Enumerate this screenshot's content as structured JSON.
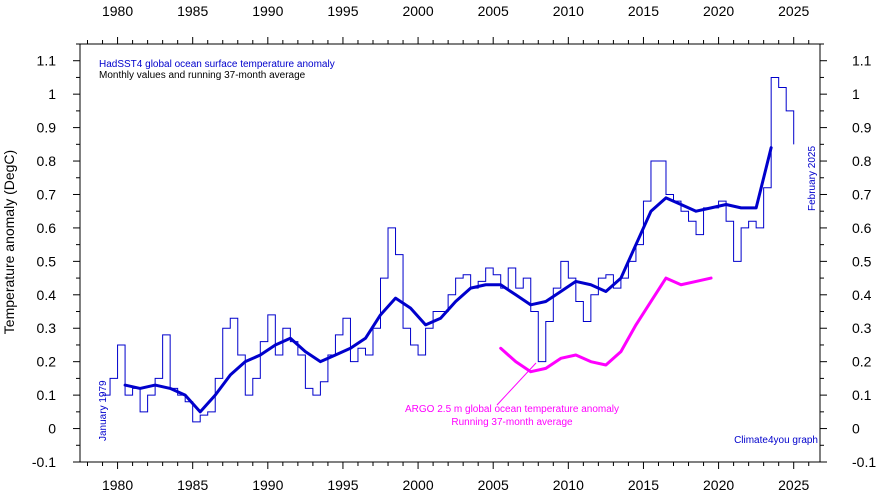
{
  "chart_data": {
    "type": "line",
    "ylabel": "Temperature anomaly (DegC)",
    "xlim": [
      1977.5,
      2026.75
    ],
    "ylim": [
      -0.1,
      1.15
    ],
    "x_ticks": [
      1980,
      1985,
      1990,
      1995,
      2000,
      2005,
      2010,
      2015,
      2020,
      2025
    ],
    "y_ticks": [
      -0.1,
      0,
      0.1,
      0.2,
      0.3,
      0.4,
      0.5,
      0.6,
      0.7,
      0.8,
      0.9,
      1,
      1.1
    ],
    "y_tick_labels": [
      "-0.1",
      "0",
      "0.1",
      "0.2",
      "0.3",
      "0.4",
      "0.5",
      "0.6",
      "0.7",
      "0.8",
      "0.9",
      "1",
      "1.1"
    ],
    "grid": false,
    "annotations": {
      "title": "HadSST4 global ocean surface temperature anomaly",
      "subtitle": "Monthly values and running 37-month average",
      "start_label": "January 1979",
      "end_label": "February 2025",
      "argo_label_line1": "ARGO 2.5 m global ocean temperature anomaly",
      "argo_label_line2": "Running 37-month average",
      "credit": "Climate4you graph"
    },
    "series": [
      {
        "name": "HadSST4 monthly",
        "style": "thin-step",
        "color": "#0000cc",
        "x": [
          1979.0,
          1979.5,
          1980.0,
          1980.5,
          1981.0,
          1981.5,
          1982.0,
          1982.5,
          1983.0,
          1983.5,
          1984.0,
          1984.5,
          1985.0,
          1985.5,
          1986.0,
          1986.5,
          1987.0,
          1987.5,
          1988.0,
          1988.5,
          1989.0,
          1989.5,
          1990.0,
          1990.5,
          1991.0,
          1991.5,
          1992.0,
          1992.5,
          1993.0,
          1993.5,
          1994.0,
          1994.5,
          1995.0,
          1995.5,
          1996.0,
          1996.5,
          1997.0,
          1997.5,
          1998.0,
          1998.5,
          1999.0,
          1999.5,
          2000.0,
          2000.5,
          2001.0,
          2001.5,
          2002.0,
          2002.5,
          2003.0,
          2003.5,
          2004.0,
          2004.5,
          2005.0,
          2005.5,
          2006.0,
          2006.5,
          2007.0,
          2007.5,
          2008.0,
          2008.5,
          2009.0,
          2009.5,
          2010.0,
          2010.5,
          2011.0,
          2011.5,
          2012.0,
          2012.5,
          2013.0,
          2013.5,
          2014.0,
          2014.5,
          2015.0,
          2015.5,
          2016.0,
          2016.5,
          2017.0,
          2017.5,
          2018.0,
          2018.5,
          2019.0,
          2019.5,
          2020.0,
          2020.5,
          2021.0,
          2021.5,
          2022.0,
          2022.5,
          2023.0,
          2023.5,
          2024.0,
          2024.5,
          2025.0
        ],
        "y": [
          0.1,
          0.15,
          0.25,
          0.1,
          0.12,
          0.05,
          0.1,
          0.15,
          0.28,
          0.12,
          0.1,
          0.08,
          0.02,
          0.04,
          0.05,
          0.15,
          0.3,
          0.33,
          0.22,
          0.1,
          0.15,
          0.26,
          0.34,
          0.22,
          0.3,
          0.26,
          0.22,
          0.12,
          0.1,
          0.14,
          0.22,
          0.28,
          0.33,
          0.2,
          0.24,
          0.22,
          0.3,
          0.45,
          0.6,
          0.52,
          0.3,
          0.25,
          0.22,
          0.3,
          0.35,
          0.35,
          0.4,
          0.45,
          0.46,
          0.42,
          0.44,
          0.48,
          0.46,
          0.42,
          0.48,
          0.42,
          0.45,
          0.35,
          0.2,
          0.32,
          0.42,
          0.5,
          0.45,
          0.38,
          0.32,
          0.4,
          0.45,
          0.46,
          0.42,
          0.45,
          0.5,
          0.55,
          0.68,
          0.8,
          0.8,
          0.7,
          0.68,
          0.65,
          0.62,
          0.58,
          0.66,
          0.66,
          0.68,
          0.62,
          0.5,
          0.6,
          0.62,
          0.6,
          0.72,
          1.05,
          1.02,
          0.95,
          0.85
        ]
      },
      {
        "name": "HadSST4 37-month running average",
        "style": "thick",
        "color": "#0000cc",
        "x": [
          1980.5,
          1981.5,
          1982.5,
          1983.5,
          1984.5,
          1985.5,
          1986.5,
          1987.5,
          1988.5,
          1989.5,
          1990.5,
          1991.5,
          1992.5,
          1993.5,
          1994.5,
          1995.5,
          1996.5,
          1997.5,
          1998.5,
          1999.5,
          2000.5,
          2001.5,
          2002.5,
          2003.5,
          2004.5,
          2005.5,
          2006.5,
          2007.5,
          2008.5,
          2009.5,
          2010.5,
          2011.5,
          2012.5,
          2013.5,
          2014.5,
          2015.5,
          2016.5,
          2017.5,
          2018.5,
          2019.5,
          2020.5,
          2021.5,
          2022.5,
          2023.5
        ],
        "y": [
          0.13,
          0.12,
          0.13,
          0.12,
          0.1,
          0.05,
          0.1,
          0.16,
          0.2,
          0.22,
          0.25,
          0.27,
          0.23,
          0.2,
          0.22,
          0.24,
          0.27,
          0.34,
          0.39,
          0.36,
          0.31,
          0.33,
          0.38,
          0.42,
          0.43,
          0.43,
          0.4,
          0.37,
          0.38,
          0.41,
          0.44,
          0.43,
          0.41,
          0.45,
          0.55,
          0.65,
          0.69,
          0.67,
          0.65,
          0.66,
          0.67,
          0.66,
          0.66,
          0.84
        ]
      },
      {
        "name": "ARGO 2.5 m running 37-month average",
        "style": "thick",
        "color": "#ff00ff",
        "x": [
          2005.5,
          2006.5,
          2007.5,
          2008.5,
          2009.5,
          2010.5,
          2011.5,
          2012.5,
          2013.5,
          2014.5,
          2015.5,
          2016.5,
          2017.5,
          2018.5,
          2019.5
        ],
        "y": [
          0.24,
          0.2,
          0.17,
          0.18,
          0.21,
          0.22,
          0.2,
          0.19,
          0.23,
          0.31,
          0.38,
          0.45,
          0.43,
          0.44,
          0.45
        ]
      }
    ]
  }
}
